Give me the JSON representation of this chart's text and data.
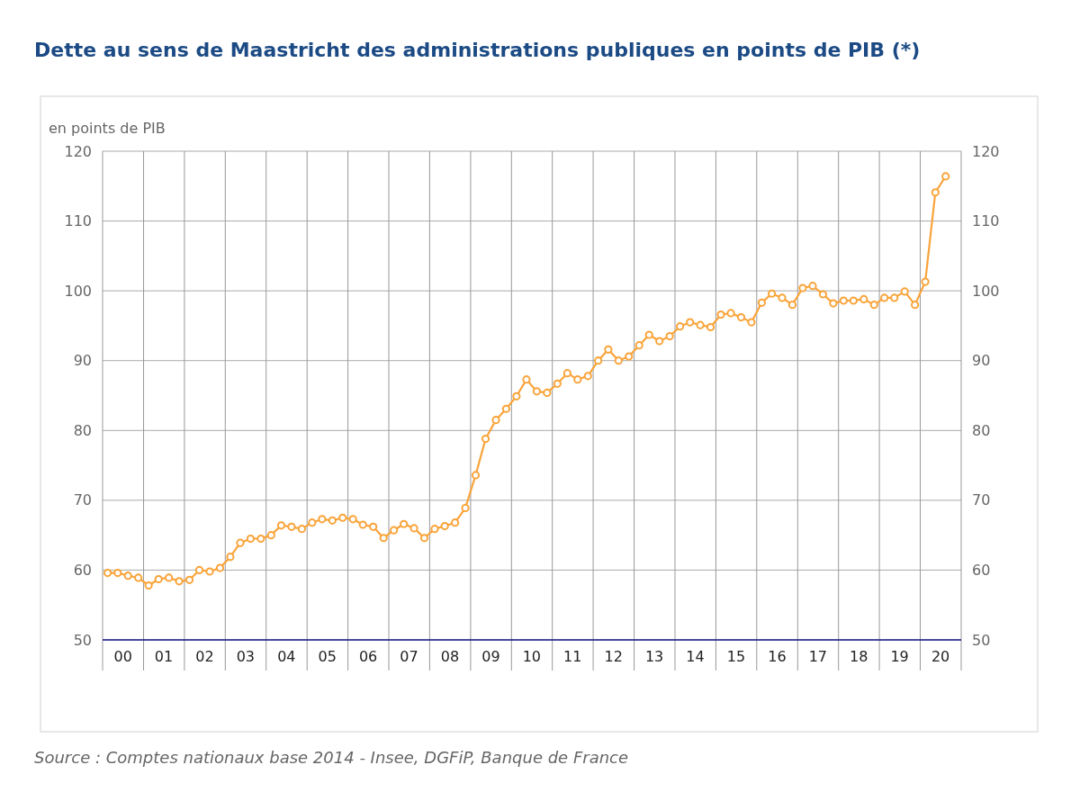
{
  "chart_data": {
    "type": "line",
    "title": "Dette au sens de Maastricht des administrations publiques en points de PIB (*)",
    "ylabel": "en points de PIB",
    "annotations": [
      "Source : Comptes nationaux base 2014 - Insee, DGFiP, Banque de France"
    ],
    "x": [
      "2000-02-15",
      "2000-05-15",
      "2000-08-15",
      "2000-11-15",
      "2001-02-15",
      "2001-05-15",
      "2001-08-15",
      "2001-11-15",
      "2002-02-15",
      "2002-05-15",
      "2002-08-15",
      "2002-11-15",
      "2003-02-15",
      "2003-05-15",
      "2003-08-15",
      "2003-11-15",
      "2004-02-15",
      "2004-05-15",
      "2004-08-15",
      "2004-11-15",
      "2005-02-15",
      "2005-05-15",
      "2005-08-15",
      "2005-11-15",
      "2006-02-15",
      "2006-05-15",
      "2006-08-15",
      "2006-11-15",
      "2007-02-15",
      "2007-05-15",
      "2007-08-15",
      "2007-11-15",
      "2008-02-15",
      "2008-05-15",
      "2008-08-15",
      "2008-11-15",
      "2009-02-15",
      "2009-05-15",
      "2009-08-15",
      "2009-11-15",
      "2010-02-15",
      "2010-05-15",
      "2010-08-15",
      "2010-11-15",
      "2011-02-15",
      "2011-05-15",
      "2011-08-15",
      "2011-11-15",
      "2012-02-15",
      "2012-05-15",
      "2012-08-15",
      "2012-11-15",
      "2013-02-15",
      "2013-05-15",
      "2013-08-15",
      "2013-11-15",
      "2014-02-15",
      "2014-05-15",
      "2014-08-15",
      "2014-11-15",
      "2015-02-15",
      "2015-05-15",
      "2015-08-15",
      "2015-11-15",
      "2016-02-15",
      "2016-05-15",
      "2016-08-15",
      "2016-11-15",
      "2017-02-15",
      "2017-05-15",
      "2017-08-15",
      "2017-11-15",
      "2018-02-15",
      "2018-05-15",
      "2018-08-15",
      "2018-11-15",
      "2019-02-15",
      "2019-05-15",
      "2019-08-15",
      "2019-11-15",
      "2020-02-15",
      "2020-05-15",
      "2020-08-15"
    ],
    "series": [
      {
        "color": "#f9a43a",
        "values": [
          59.6,
          59.6,
          59.2,
          58.9,
          57.8,
          58.7,
          58.9,
          58.4,
          58.6,
          60.0,
          59.8,
          60.3,
          61.9,
          63.9,
          64.5,
          64.5,
          65.0,
          66.4,
          66.2,
          65.9,
          66.8,
          67.3,
          67.1,
          67.5,
          67.3,
          66.5,
          66.2,
          64.6,
          65.7,
          66.6,
          66.0,
          64.6,
          65.9,
          66.3,
          66.8,
          68.9,
          73.6,
          78.8,
          81.5,
          83.1,
          84.9,
          87.3,
          85.6,
          85.4,
          86.7,
          88.2,
          87.3,
          87.8,
          90.0,
          91.6,
          90.0,
          90.6,
          92.2,
          93.7,
          92.8,
          93.5,
          94.9,
          95.5,
          95.1,
          94.8,
          96.6,
          96.8,
          96.2,
          95.5,
          98.3,
          99.6,
          99.0,
          98.0,
          100.4,
          100.7,
          99.5,
          98.2,
          98.6,
          98.6,
          98.8,
          98.0,
          99.0,
          99.0,
          99.9,
          98.0,
          101.3,
          114.1,
          116.4
        ]
      }
    ],
    "xlim": [
      "2000-01-01",
      "2021-01-01"
    ],
    "xticks": [
      {
        "value": "2000-01-01",
        "label": null
      },
      {
        "value": "2000-07-01",
        "label": "00"
      },
      {
        "value": "2001-01-01",
        "label": null
      },
      {
        "value": "2001-07-01",
        "label": "01"
      },
      {
        "value": "2002-01-01",
        "label": null
      },
      {
        "value": "2002-07-01",
        "label": "02"
      },
      {
        "value": "2003-01-01",
        "label": null
      },
      {
        "value": "2003-07-01",
        "label": "03"
      },
      {
        "value": "2004-01-01",
        "label": null
      },
      {
        "value": "2004-07-01",
        "label": "04"
      },
      {
        "value": "2005-01-01",
        "label": null
      },
      {
        "value": "2005-07-01",
        "label": "05"
      },
      {
        "value": "2006-01-01",
        "label": null
      },
      {
        "value": "2006-07-01",
        "label": "06"
      },
      {
        "value": "2007-01-01",
        "label": null
      },
      {
        "value": "2007-07-01",
        "label": "07"
      },
      {
        "value": "2008-01-01",
        "label": null
      },
      {
        "value": "2008-07-01",
        "label": "08"
      },
      {
        "value": "2009-01-01",
        "label": null
      },
      {
        "value": "2009-07-01",
        "label": "09"
      },
      {
        "value": "2010-01-01",
        "label": null
      },
      {
        "value": "2010-07-01",
        "label": "10"
      },
      {
        "value": "2011-01-01",
        "label": null
      },
      {
        "value": "2011-07-01",
        "label": "11"
      },
      {
        "value": "2012-01-01",
        "label": null
      },
      {
        "value": "2012-07-01",
        "label": "12"
      },
      {
        "value": "2013-01-01",
        "label": null
      },
      {
        "value": "2013-07-01",
        "label": "13"
      },
      {
        "value": "2014-01-01",
        "label": null
      },
      {
        "value": "2014-07-01",
        "label": "14"
      },
      {
        "value": "2015-01-01",
        "label": null
      },
      {
        "value": "2015-07-01",
        "label": "15"
      },
      {
        "value": "2016-01-01",
        "label": null
      },
      {
        "value": "2016-07-01",
        "label": "16"
      },
      {
        "value": "2017-01-01",
        "label": null
      },
      {
        "value": "2017-07-01",
        "label": "17"
      },
      {
        "value": "2018-01-01",
        "label": null
      },
      {
        "value": "2018-07-01",
        "label": "18"
      },
      {
        "value": "2019-01-01",
        "label": null
      },
      {
        "value": "2019-07-01",
        "label": "19"
      },
      {
        "value": "2020-01-01",
        "label": null
      },
      {
        "value": "2020-07-01",
        "label": "20"
      },
      {
        "value": "2021-01-01",
        "label": null
      }
    ],
    "ylim": [
      50,
      120
    ],
    "yticks": [
      50,
      60,
      70,
      80,
      90,
      100,
      110,
      120
    ],
    "y2lim": [
      50,
      120
    ],
    "y2ticks": [
      50,
      60,
      70,
      80,
      90,
      100,
      110,
      120
    ],
    "grid": true,
    "marker": "circle"
  }
}
